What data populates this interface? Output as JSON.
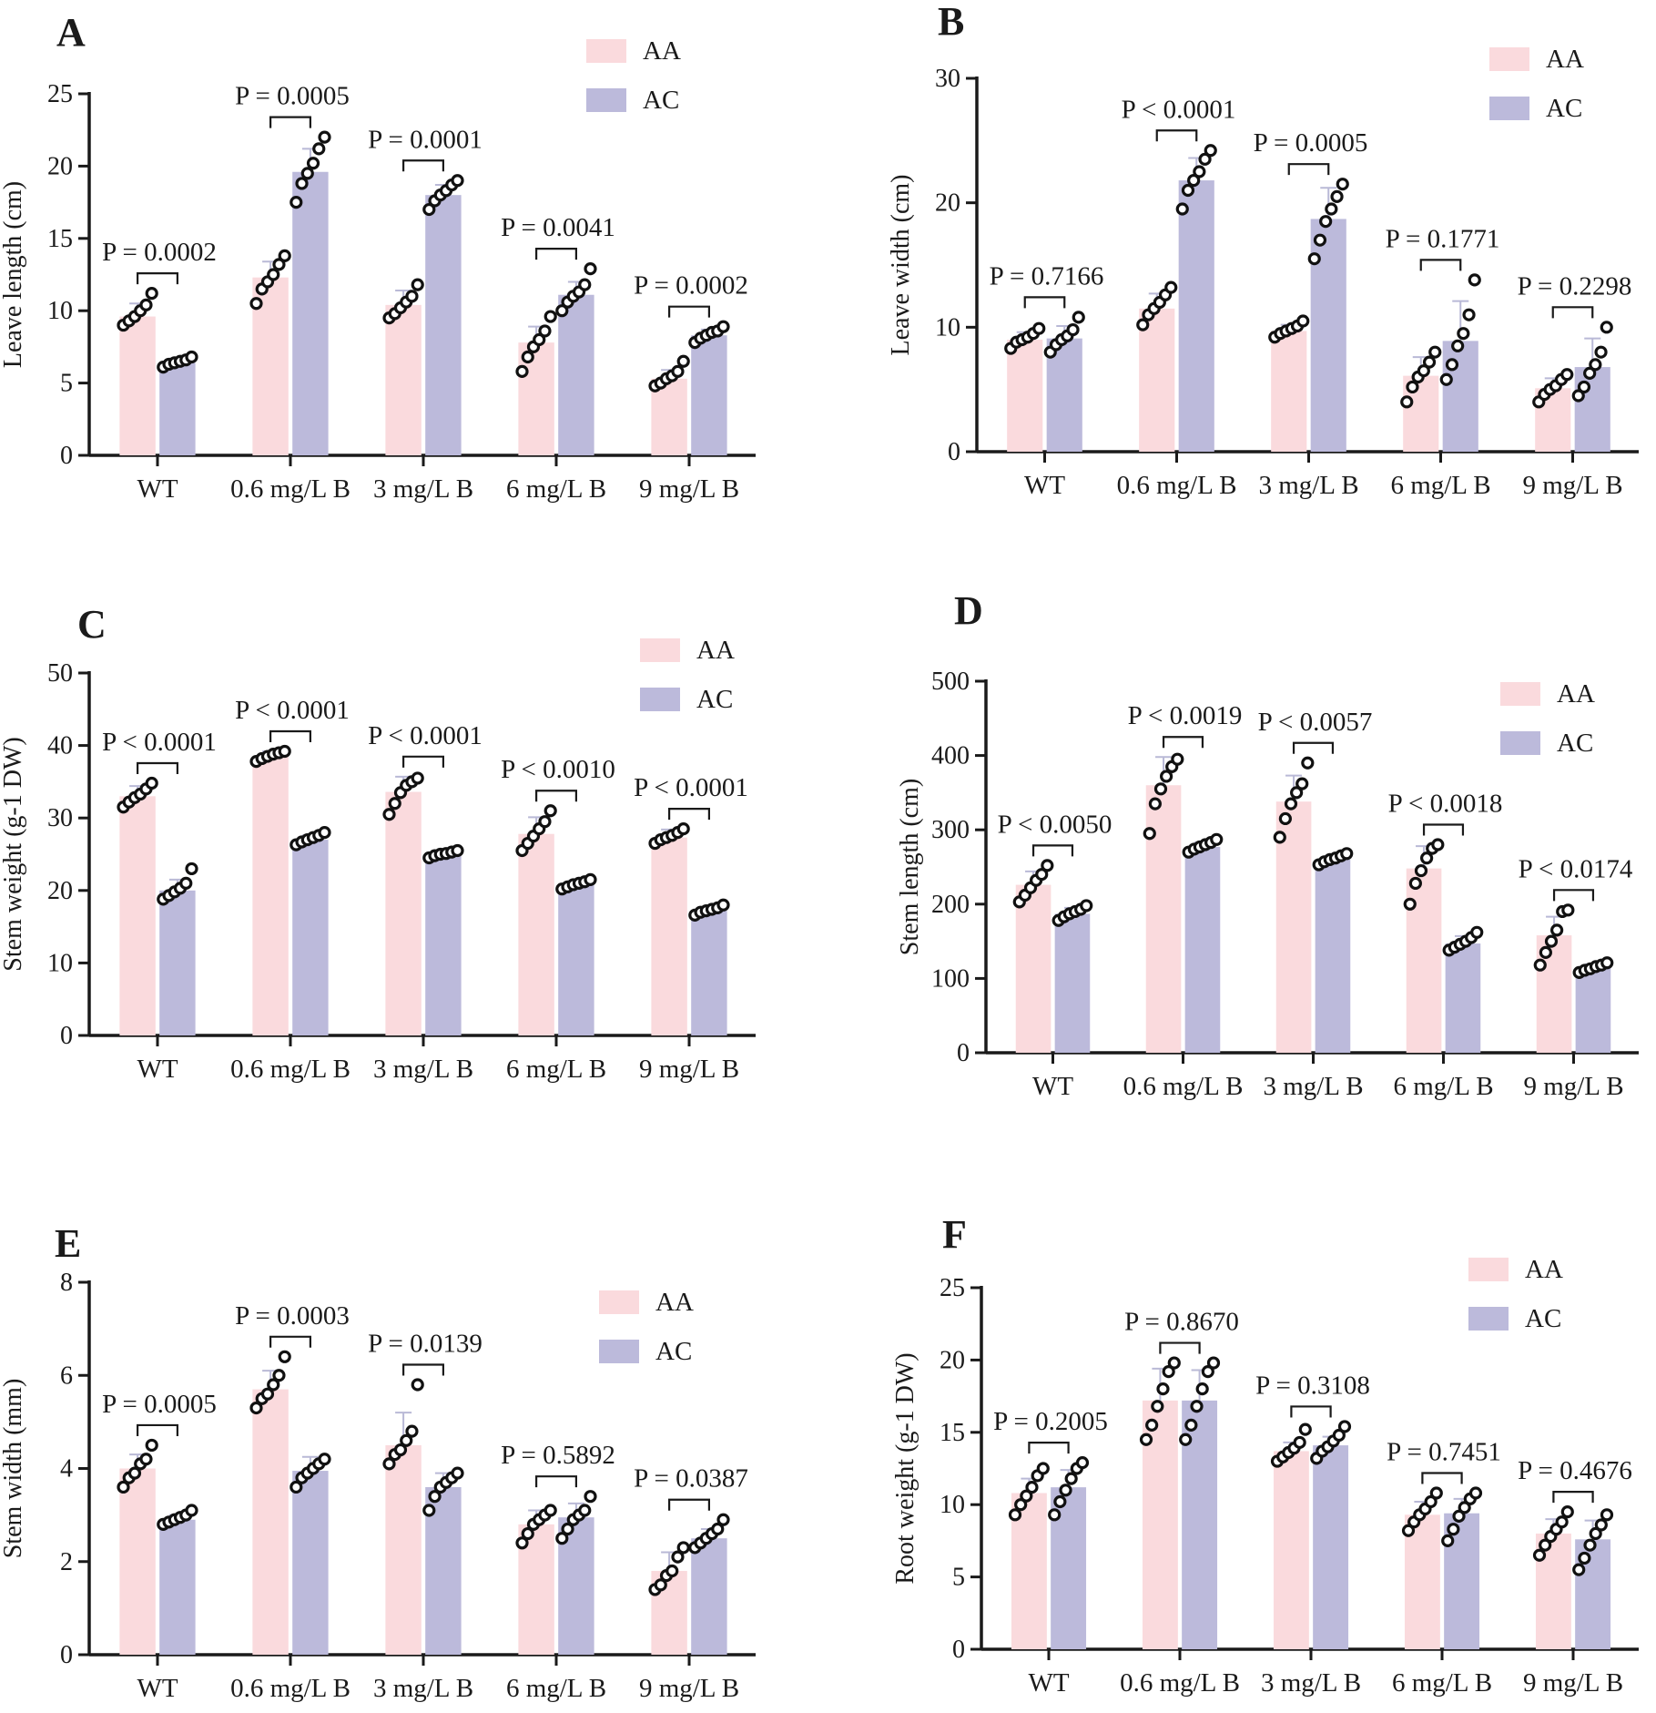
{
  "figure": {
    "colors": {
      "AA": "#fadadd",
      "AC": "#bcbadb"
    },
    "legend": [
      "AA",
      "AC"
    ]
  },
  "chart_data": [
    {
      "panel": "A",
      "type": "bar",
      "ylabel": "Leave length (cm)",
      "ylim": [
        0,
        25
      ],
      "yticks": [
        0,
        5,
        10,
        15,
        20,
        25
      ],
      "categories": [
        "WT",
        "0.6 mg/L B",
        "3 mg/L B",
        "6 mg/L B",
        "9 mg/L B"
      ],
      "series": [
        {
          "name": "AA",
          "values": [
            9.6,
            12.3,
            10.4,
            7.8,
            5.3
          ],
          "err": [
            0.9,
            1.1,
            1.0,
            1.1,
            0.6
          ],
          "points": [
            [
              9.0,
              9.3,
              9.6,
              10.0,
              10.4,
              11.2
            ],
            [
              10.5,
              11.5,
              12.0,
              12.5,
              13.2,
              13.8
            ],
            [
              9.5,
              9.8,
              10.2,
              10.6,
              11.0,
              11.8
            ],
            [
              5.8,
              6.8,
              7.5,
              8.0,
              8.6,
              9.6
            ],
            [
              4.8,
              5.0,
              5.3,
              5.5,
              5.8,
              6.5
            ]
          ]
        },
        {
          "name": "AC",
          "values": [
            6.4,
            19.6,
            18.0,
            11.1,
            8.3
          ],
          "err": [
            0.3,
            1.6,
            0.7,
            0.9,
            0.4
          ],
          "points": [
            [
              6.1,
              6.3,
              6.4,
              6.5,
              6.6,
              6.8
            ],
            [
              17.5,
              18.8,
              19.5,
              20.2,
              21.2,
              22.0
            ],
            [
              17.0,
              17.6,
              18.0,
              18.3,
              18.7,
              19.0
            ],
            [
              10.0,
              10.6,
              11.0,
              11.3,
              11.8,
              12.9
            ],
            [
              7.8,
              8.1,
              8.3,
              8.5,
              8.6,
              8.9
            ]
          ]
        }
      ],
      "annotations": [
        "P = 0.0002",
        "P = 0.0005",
        "P = 0.0001",
        "P = 0.0041",
        "P = 0.0002"
      ]
    },
    {
      "panel": "B",
      "type": "bar",
      "ylabel": "Leave width (cm)",
      "ylim": [
        0,
        30
      ],
      "yticks": [
        0,
        10,
        20,
        30
      ],
      "categories": [
        "WT",
        "0.6 mg/L B",
        "3 mg/L B",
        "6 mg/L B",
        "9 mg/L B"
      ],
      "series": [
        {
          "name": "AA",
          "values": [
            9.0,
            11.5,
            9.7,
            6.1,
            5.1
          ],
          "err": [
            0.6,
            1.2,
            0.5,
            1.5,
            0.8
          ],
          "points": [
            [
              8.3,
              8.8,
              9.0,
              9.2,
              9.5,
              9.9
            ],
            [
              10.2,
              11.0,
              11.5,
              12.0,
              12.6,
              13.2
            ],
            [
              9.2,
              9.5,
              9.7,
              9.9,
              10.1,
              10.5
            ],
            [
              4.0,
              5.2,
              6.0,
              6.5,
              7.2,
              8.0
            ],
            [
              4.0,
              4.6,
              5.0,
              5.3,
              5.8,
              6.2
            ]
          ]
        },
        {
          "name": "AC",
          "values": [
            9.1,
            21.8,
            18.7,
            8.9,
            6.8
          ],
          "err": [
            1.0,
            1.8,
            2.5,
            3.2,
            2.3
          ],
          "points": [
            [
              8.0,
              8.6,
              9.0,
              9.3,
              9.8,
              10.8
            ],
            [
              19.5,
              21.0,
              21.8,
              22.5,
              23.5,
              24.2
            ],
            [
              15.5,
              17.0,
              18.5,
              19.5,
              20.5,
              21.5
            ],
            [
              5.8,
              7.0,
              8.5,
              9.5,
              11.0,
              13.8
            ],
            [
              4.5,
              5.2,
              6.3,
              7.0,
              8.0,
              10.0
            ]
          ]
        }
      ],
      "annotations": [
        "P = 0.7166",
        "P < 0.0001",
        "P = 0.0005",
        "P = 0.1771",
        "P = 0.2298"
      ]
    },
    {
      "panel": "C",
      "type": "bar",
      "ylabel": "Stem weight (g-1 DW)",
      "ylim": [
        0,
        50
      ],
      "yticks": [
        0,
        10,
        20,
        30,
        40,
        50
      ],
      "categories": [
        "WT",
        "0.6 mg/L B",
        "3 mg/L B",
        "6 mg/L B",
        "9 mg/L B"
      ],
      "series": [
        {
          "name": "AA",
          "values": [
            33.0,
            38.5,
            33.6,
            27.8,
            27.3
          ],
          "err": [
            1.4,
            0.7,
            2.1,
            2.3,
            1.1
          ],
          "points": [
            [
              31.5,
              32.2,
              32.8,
              33.3,
              34.0,
              34.8
            ],
            [
              37.8,
              38.2,
              38.5,
              38.8,
              39.0,
              39.2
            ],
            [
              30.5,
              32.0,
              33.5,
              34.5,
              35.0,
              35.5
            ],
            [
              25.5,
              26.5,
              27.5,
              28.5,
              29.5,
              31.0
            ],
            [
              26.5,
              27.0,
              27.3,
              27.6,
              28.0,
              28.5
            ]
          ]
        },
        {
          "name": "AC",
          "values": [
            20.0,
            27.0,
            25.0,
            20.8,
            17.2
          ],
          "err": [
            1.5,
            0.6,
            0.4,
            0.5,
            0.5
          ],
          "points": [
            [
              18.8,
              19.3,
              19.8,
              20.3,
              21.0,
              23.0
            ],
            [
              26.3,
              26.7,
              27.0,
              27.3,
              27.6,
              28.0
            ],
            [
              24.5,
              24.8,
              25.0,
              25.1,
              25.3,
              25.5
            ],
            [
              20.2,
              20.5,
              20.8,
              21.0,
              21.2,
              21.5
            ],
            [
              16.6,
              17.0,
              17.2,
              17.4,
              17.6,
              18.0
            ]
          ]
        }
      ],
      "annotations": [
        "P < 0.0001",
        "P < 0.0001",
        "P < 0.0001",
        "P < 0.0010",
        "P < 0.0001"
      ]
    },
    {
      "panel": "D",
      "type": "bar",
      "ylabel": "Stem length (cm)",
      "ylim": [
        0,
        500
      ],
      "yticks": [
        0,
        100,
        200,
        300,
        400,
        500
      ],
      "categories": [
        "WT",
        "0.6 mg/L B",
        "3 mg/L B",
        "6 mg/L B",
        "9 mg/L B"
      ],
      "series": [
        {
          "name": "AA",
          "values": [
            226,
            360,
            338,
            248,
            158
          ],
          "err": [
            18,
            38,
            35,
            30,
            25
          ],
          "points": [
            [
              203,
              212,
              222,
              232,
              240,
              252
            ],
            [
              295,
              335,
              355,
              372,
              385,
              395
            ],
            [
              290,
              315,
              335,
              350,
              362,
              390
            ],
            [
              200,
              228,
              245,
              262,
              275,
              280
            ],
            [
              118,
              135,
              150,
              165,
              190,
              192
            ]
          ]
        },
        {
          "name": "AC",
          "values": [
            187,
            277,
            260,
            147,
            114
          ],
          "err": [
            8,
            6,
            5,
            10,
            5
          ],
          "points": [
            [
              178,
              183,
              187,
              190,
              193,
              198
            ],
            [
              270,
              274,
              277,
              280,
              283,
              287
            ],
            [
              253,
              257,
              260,
              262,
              265,
              268
            ],
            [
              138,
              142,
              146,
              150,
              155,
              162
            ],
            [
              108,
              111,
              113,
              116,
              118,
              121
            ]
          ]
        }
      ],
      "annotations": [
        "P < 0.0050",
        "P < 0.0019",
        "P < 0.0057",
        "P < 0.0018",
        "P < 0.0174"
      ]
    },
    {
      "panel": "E",
      "type": "bar",
      "ylabel": "Stem width (mm)",
      "ylim": [
        0,
        8
      ],
      "yticks": [
        0,
        2,
        4,
        6,
        8
      ],
      "categories": [
        "WT",
        "0.6 mg/L B",
        "3 mg/L B",
        "6 mg/L B",
        "9 mg/L B"
      ],
      "series": [
        {
          "name": "AA",
          "values": [
            4.0,
            5.7,
            4.5,
            2.8,
            1.8
          ],
          "err": [
            0.3,
            0.4,
            0.7,
            0.3,
            0.4
          ],
          "points": [
            [
              3.6,
              3.8,
              3.9,
              4.1,
              4.2,
              4.5
            ],
            [
              5.3,
              5.5,
              5.6,
              5.8,
              6.0,
              6.4
            ],
            [
              4.1,
              4.3,
              4.4,
              4.6,
              4.8,
              5.8
            ],
            [
              2.4,
              2.6,
              2.8,
              2.9,
              3.0,
              3.1
            ],
            [
              1.4,
              1.5,
              1.7,
              1.8,
              2.1,
              2.3
            ]
          ]
        },
        {
          "name": "AC",
          "values": [
            2.9,
            3.95,
            3.6,
            2.95,
            2.5
          ],
          "err": [
            0.1,
            0.3,
            0.3,
            0.3,
            0.2
          ],
          "points": [
            [
              2.8,
              2.85,
              2.9,
              2.95,
              3.0,
              3.1
            ],
            [
              3.6,
              3.8,
              3.9,
              4.0,
              4.1,
              4.2
            ],
            [
              3.1,
              3.4,
              3.6,
              3.7,
              3.8,
              3.9
            ],
            [
              2.5,
              2.7,
              2.9,
              3.0,
              3.1,
              3.4
            ],
            [
              2.3,
              2.4,
              2.5,
              2.6,
              2.7,
              2.9
            ]
          ]
        }
      ],
      "annotations": [
        "P = 0.0005",
        "P = 0.0003",
        "P = 0.0139",
        "P = 0.5892",
        "P = 0.0387"
      ]
    },
    {
      "panel": "F",
      "type": "bar",
      "ylabel": "Root weight (g-1 DW)",
      "ylim": [
        0,
        25
      ],
      "yticks": [
        0,
        5,
        10,
        15,
        20,
        25
      ],
      "categories": [
        "WT",
        "0.6 mg/L B",
        "3 mg/L B",
        "6 mg/L B",
        "9 mg/L B"
      ],
      "series": [
        {
          "name": "AA",
          "values": [
            10.8,
            17.2,
            13.7,
            9.3,
            8.0
          ],
          "err": [
            1.0,
            2.2,
            0.6,
            0.9,
            1.0
          ],
          "points": [
            [
              9.3,
              10.0,
              10.6,
              11.2,
              12.0,
              12.5
            ],
            [
              14.5,
              15.5,
              16.8,
              18.0,
              19.2,
              19.8
            ],
            [
              13.0,
              13.3,
              13.6,
              13.9,
              14.3,
              15.2
            ],
            [
              8.2,
              8.8,
              9.3,
              9.7,
              10.2,
              10.8
            ],
            [
              6.5,
              7.2,
              7.8,
              8.3,
              8.8,
              9.5
            ]
          ]
        },
        {
          "name": "AC",
          "values": [
            11.2,
            17.2,
            14.1,
            9.4,
            7.6
          ],
          "err": [
            1.2,
            2.1,
            0.6,
            1.0,
            1.3
          ],
          "points": [
            [
              9.3,
              10.2,
              11.0,
              11.8,
              12.5,
              12.9
            ],
            [
              14.5,
              15.5,
              16.8,
              18.0,
              19.2,
              19.8
            ],
            [
              13.2,
              13.7,
              14.0,
              14.4,
              14.8,
              15.4
            ],
            [
              7.5,
              8.3,
              9.2,
              9.8,
              10.4,
              10.8
            ],
            [
              5.5,
              6.3,
              7.2,
              8.0,
              8.6,
              9.3
            ]
          ]
        }
      ],
      "annotations": [
        "P = 0.2005",
        "P = 0.8670",
        "P = 0.3108",
        "P = 0.7451",
        "P = 0.4676"
      ]
    }
  ]
}
